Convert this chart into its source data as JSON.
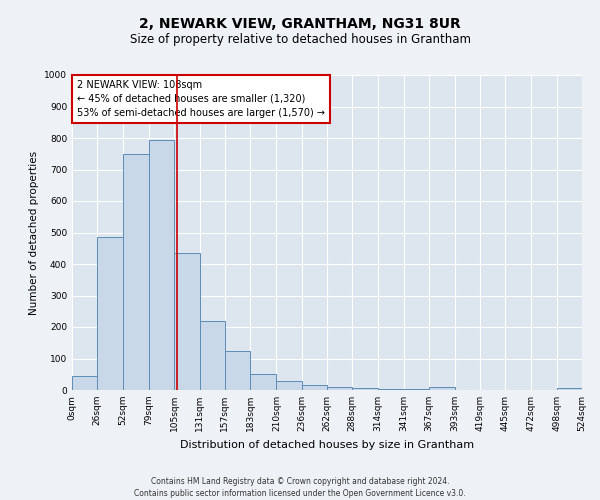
{
  "title": "2, NEWARK VIEW, GRANTHAM, NG31 8UR",
  "subtitle": "Size of property relative to detached houses in Grantham",
  "xlabel": "Distribution of detached houses by size in Grantham",
  "ylabel": "Number of detached properties",
  "bin_edges": [
    0,
    26,
    52,
    79,
    105,
    131,
    157,
    183,
    210,
    236,
    262,
    288,
    314,
    341,
    367,
    393,
    419,
    445,
    472,
    498,
    524
  ],
  "bar_heights": [
    45,
    485,
    750,
    795,
    435,
    220,
    125,
    52,
    28,
    15,
    10,
    5,
    3,
    2,
    8,
    0,
    0,
    0,
    0,
    5
  ],
  "bar_color": "#c8d8e8",
  "bar_edge_color": "#5b8db8",
  "property_line_x": 108,
  "ylim": [
    0,
    1000
  ],
  "yticks": [
    0,
    100,
    200,
    300,
    400,
    500,
    600,
    700,
    800,
    900,
    1000
  ],
  "annotation_title": "2 NEWARK VIEW: 108sqm",
  "annotation_line1": "← 45% of detached houses are smaller (1,320)",
  "annotation_line2": "53% of semi-detached houses are larger (1,570) →",
  "annotation_box_color": "#cc0000",
  "footer_line1": "Contains HM Land Registry data © Crown copyright and database right 2024.",
  "footer_line2": "Contains public sector information licensed under the Open Government Licence v3.0.",
  "bg_color": "#eef2f6",
  "plot_bg_color": "#dde6ef",
  "grid_color": "#ffffff",
  "title_fontsize": 10,
  "subtitle_fontsize": 8.5,
  "xlabel_fontsize": 8,
  "ylabel_fontsize": 7.5,
  "tick_fontsize": 6.5,
  "footer_fontsize": 5.5
}
